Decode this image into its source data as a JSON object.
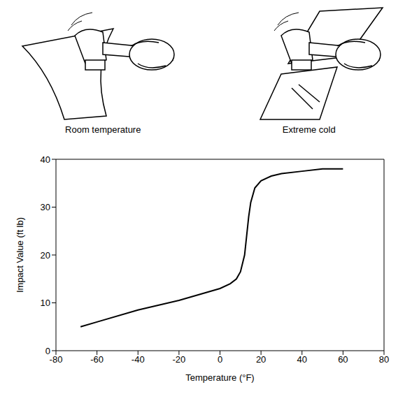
{
  "chart_data": {
    "type": "line",
    "annotations": [
      "Room temperature",
      "Extreme cold"
    ],
    "xlabel": "Temperature (°F)",
    "ylabel": "Impact Value (ft lb)",
    "x": [
      -68,
      -60,
      -40,
      -20,
      0,
      5,
      8,
      10,
      12,
      13,
      14,
      15,
      17,
      20,
      25,
      30,
      40,
      50,
      60
    ],
    "values": [
      5,
      6,
      8.5,
      10.5,
      13,
      14,
      15,
      16.5,
      20,
      24,
      28,
      31,
      34,
      35.5,
      36.5,
      37,
      37.5,
      38,
      38
    ],
    "color": "#000000",
    "xlim": [
      -80,
      80
    ],
    "ylim": [
      0,
      40
    ],
    "xticks": [
      -80,
      -60,
      -40,
      -20,
      0,
      20,
      40,
      60,
      80
    ],
    "yticks": [
      0,
      10,
      20,
      30,
      40
    ],
    "grid": false
  }
}
